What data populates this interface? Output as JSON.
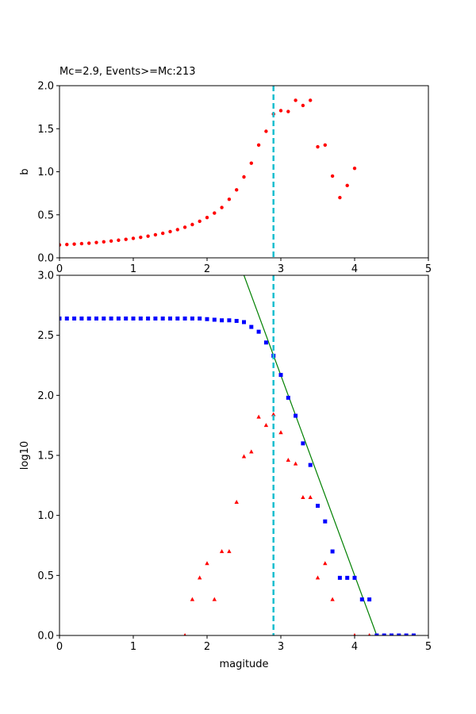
{
  "chart_data": [
    {
      "type": "scatter",
      "title": "Mc=2.9, Events>=Mc:213",
      "xlabel": "",
      "ylabel": "b",
      "xlim": [
        0,
        5
      ],
      "ylim": [
        0,
        2.0
      ],
      "xticks": [
        "0",
        "1",
        "2",
        "3",
        "4",
        "5"
      ],
      "yticks": [
        "0.0",
        "0.5",
        "1.0",
        "1.5",
        "2.0"
      ],
      "mc_line": {
        "x": 2.9,
        "color": "#17becf",
        "style": "dashed"
      },
      "series": [
        {
          "marker": "circle",
          "color": "#ff0000",
          "points": [
            [
              0.0,
              0.15
            ],
            [
              0.1,
              0.155
            ],
            [
              0.2,
              0.16
            ],
            [
              0.3,
              0.165
            ],
            [
              0.4,
              0.17
            ],
            [
              0.5,
              0.178
            ],
            [
              0.6,
              0.186
            ],
            [
              0.7,
              0.195
            ],
            [
              0.8,
              0.205
            ],
            [
              0.9,
              0.215
            ],
            [
              1.0,
              0.226
            ],
            [
              1.1,
              0.238
            ],
            [
              1.2,
              0.252
            ],
            [
              1.3,
              0.268
            ],
            [
              1.4,
              0.285
            ],
            [
              1.5,
              0.305
            ],
            [
              1.6,
              0.328
            ],
            [
              1.7,
              0.355
            ],
            [
              1.8,
              0.387
            ],
            [
              1.9,
              0.425
            ],
            [
              2.0,
              0.468
            ],
            [
              2.1,
              0.52
            ],
            [
              2.2,
              0.585
            ],
            [
              2.3,
              0.68
            ],
            [
              2.4,
              0.79
            ],
            [
              2.5,
              0.94
            ],
            [
              2.6,
              1.1
            ],
            [
              2.7,
              1.31
            ],
            [
              2.8,
              1.47
            ],
            [
              2.9,
              1.67
            ],
            [
              3.0,
              1.71
            ],
            [
              3.1,
              1.7
            ],
            [
              3.2,
              1.83
            ],
            [
              3.3,
              1.77
            ],
            [
              3.4,
              1.83
            ],
            [
              3.5,
              1.29
            ],
            [
              3.6,
              1.31
            ],
            [
              3.7,
              0.95
            ],
            [
              3.8,
              0.7
            ],
            [
              3.9,
              0.84
            ],
            [
              4.0,
              1.04
            ]
          ]
        }
      ]
    },
    {
      "type": "scatter",
      "title": "",
      "xlabel": "magitude",
      "ylabel": "log10",
      "xlim": [
        0,
        5
      ],
      "ylim": [
        0,
        3.0
      ],
      "xticks": [
        "0",
        "1",
        "2",
        "3",
        "4",
        "5"
      ],
      "yticks": [
        "0.0",
        "0.5",
        "1.0",
        "1.5",
        "2.0",
        "2.5",
        "3.0"
      ],
      "mc_line": {
        "x": 2.9,
        "color": "#17becf",
        "style": "dashed"
      },
      "fit_line": {
        "color": "#008000",
        "points": [
          [
            2.5,
            3.0
          ],
          [
            4.3,
            0.0
          ]
        ]
      },
      "series": [
        {
          "marker": "square",
          "color": "#0000ff",
          "points": [
            [
              0.0,
              2.64
            ],
            [
              0.1,
              2.64
            ],
            [
              0.2,
              2.64
            ],
            [
              0.3,
              2.64
            ],
            [
              0.4,
              2.64
            ],
            [
              0.5,
              2.64
            ],
            [
              0.6,
              2.64
            ],
            [
              0.7,
              2.64
            ],
            [
              0.8,
              2.64
            ],
            [
              0.9,
              2.64
            ],
            [
              1.0,
              2.64
            ],
            [
              1.1,
              2.64
            ],
            [
              1.2,
              2.64
            ],
            [
              1.3,
              2.64
            ],
            [
              1.4,
              2.64
            ],
            [
              1.5,
              2.64
            ],
            [
              1.6,
              2.64
            ],
            [
              1.7,
              2.64
            ],
            [
              1.8,
              2.64
            ],
            [
              1.9,
              2.64
            ],
            [
              2.0,
              2.635
            ],
            [
              2.1,
              2.63
            ],
            [
              2.2,
              2.625
            ],
            [
              2.3,
              2.625
            ],
            [
              2.4,
              2.62
            ],
            [
              2.5,
              2.61
            ],
            [
              2.6,
              2.57
            ],
            [
              2.7,
              2.53
            ],
            [
              2.8,
              2.44
            ],
            [
              2.9,
              2.33
            ],
            [
              3.0,
              2.17
            ],
            [
              3.1,
              1.98
            ],
            [
              3.2,
              1.83
            ],
            [
              3.3,
              1.6
            ],
            [
              3.4,
              1.42
            ],
            [
              3.5,
              1.08
            ],
            [
              3.6,
              0.95
            ],
            [
              3.7,
              0.7
            ],
            [
              3.8,
              0.48
            ],
            [
              3.9,
              0.48
            ],
            [
              4.0,
              0.48
            ],
            [
              4.1,
              0.3
            ],
            [
              4.2,
              0.3
            ],
            [
              4.3,
              0.0
            ],
            [
              4.4,
              0.0
            ],
            [
              4.5,
              0.0
            ],
            [
              4.6,
              0.0
            ],
            [
              4.7,
              0.0
            ],
            [
              4.8,
              0.0
            ]
          ]
        },
        {
          "marker": "triangle",
          "color": "#ff0000",
          "points": [
            [
              1.7,
              0.0
            ],
            [
              1.8,
              0.3
            ],
            [
              1.9,
              0.48
            ],
            [
              2.0,
              0.6
            ],
            [
              2.1,
              0.3
            ],
            [
              2.2,
              0.7
            ],
            [
              2.3,
              0.7
            ],
            [
              2.4,
              1.11
            ],
            [
              2.5,
              1.49
            ],
            [
              2.6,
              1.53
            ],
            [
              2.7,
              1.82
            ],
            [
              2.8,
              1.75
            ],
            [
              2.9,
              1.84
            ],
            [
              3.0,
              1.69
            ],
            [
              3.1,
              1.46
            ],
            [
              3.2,
              1.43
            ],
            [
              3.3,
              1.15
            ],
            [
              3.4,
              1.15
            ],
            [
              3.5,
              0.48
            ],
            [
              3.6,
              0.6
            ],
            [
              3.7,
              0.3
            ],
            [
              4.0,
              0.0
            ],
            [
              4.2,
              0.0
            ]
          ]
        }
      ]
    }
  ]
}
